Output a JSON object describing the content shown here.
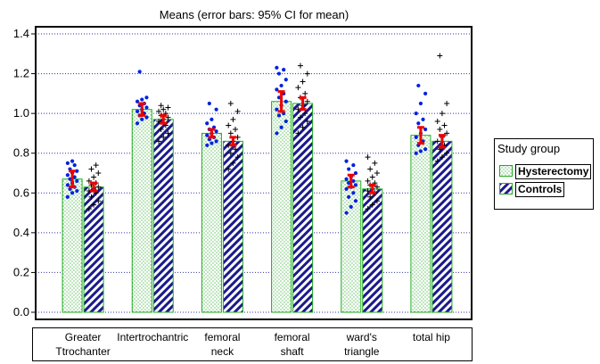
{
  "chart_data": {
    "type": "bar",
    "title": "Means  (error bars: 95% CI for mean)",
    "xlabel": "",
    "ylabel": "",
    "ylim": [
      0,
      1.4
    ],
    "yticks": [
      "0.0",
      "0.2",
      "0.4",
      "0.6",
      "0.8",
      "1.0",
      "1.2",
      "1.4"
    ],
    "grid": true,
    "categories": [
      "Greater\nTtrochanter",
      "Intertrochantric",
      "femoral\nneck",
      "femoral\nshaft",
      "ward's\ntriangle",
      "total hip"
    ],
    "series": [
      {
        "name": "Hysterectomy",
        "values": [
          0.67,
          1.02,
          0.9,
          1.06,
          0.66,
          0.89
        ],
        "ci_low": [
          0.63,
          0.99,
          0.88,
          1.01,
          0.63,
          0.85
        ],
        "ci_high": [
          0.71,
          1.05,
          0.92,
          1.11,
          0.69,
          0.93
        ],
        "points": [
          [
            0.58,
            0.6,
            0.61,
            0.62,
            0.63,
            0.64,
            0.65,
            0.66,
            0.67,
            0.68,
            0.69,
            0.7,
            0.71,
            0.72,
            0.74,
            0.75,
            0.76
          ],
          [
            0.95,
            0.97,
            0.98,
            0.99,
            1.0,
            1.01,
            1.02,
            1.03,
            1.04,
            1.05,
            1.06,
            1.07,
            1.08,
            1.21
          ],
          [
            0.84,
            0.85,
            0.86,
            0.87,
            0.88,
            0.89,
            0.9,
            0.91,
            0.92,
            0.93,
            0.95,
            0.97,
            1.02,
            1.05
          ],
          [
            0.9,
            0.93,
            0.96,
            0.99,
            1.0,
            1.02,
            1.04,
            1.06,
            1.08,
            1.1,
            1.12,
            1.14,
            1.17,
            1.2,
            1.22,
            1.23
          ],
          [
            0.5,
            0.53,
            0.56,
            0.58,
            0.6,
            0.62,
            0.63,
            0.64,
            0.65,
            0.66,
            0.67,
            0.68,
            0.7,
            0.72,
            0.74,
            0.76
          ],
          [
            0.8,
            0.81,
            0.82,
            0.84,
            0.86,
            0.88,
            0.9,
            0.92,
            0.95,
            0.97,
            1.0,
            1.05,
            1.1,
            1.14
          ]
        ]
      },
      {
        "name": "Controls",
        "values": [
          0.63,
          0.97,
          0.86,
          1.05,
          0.62,
          0.86
        ],
        "ci_low": [
          0.61,
          0.95,
          0.84,
          1.02,
          0.6,
          0.83
        ],
        "ci_high": [
          0.65,
          0.99,
          0.88,
          1.08,
          0.64,
          0.89
        ],
        "points": [
          [
            0.52,
            0.54,
            0.56,
            0.58,
            0.6,
            0.61,
            0.62,
            0.63,
            0.64,
            0.65,
            0.66,
            0.68,
            0.7,
            0.72,
            0.74
          ],
          [
            0.86,
            0.88,
            0.9,
            0.92,
            0.94,
            0.96,
            0.97,
            0.98,
            0.99,
            1.0,
            1.01,
            1.02,
            1.03,
            1.04
          ],
          [
            0.72,
            0.75,
            0.78,
            0.8,
            0.82,
            0.84,
            0.86,
            0.88,
            0.9,
            0.92,
            0.94,
            0.97,
            1.01,
            1.05
          ],
          [
            0.9,
            0.93,
            0.96,
            0.98,
            1.0,
            1.02,
            1.04,
            1.06,
            1.08,
            1.1,
            1.13,
            1.16,
            1.2,
            1.24
          ],
          [
            0.52,
            0.54,
            0.56,
            0.58,
            0.6,
            0.61,
            0.62,
            0.63,
            0.64,
            0.65,
            0.66,
            0.68,
            0.7,
            0.72,
            0.75,
            0.78
          ],
          [
            0.76,
            0.78,
            0.8,
            0.82,
            0.84,
            0.86,
            0.88,
            0.9,
            0.92,
            0.94,
            0.96,
            1.0,
            1.05,
            1.29
          ]
        ]
      }
    ],
    "legend": {
      "title": "Study group",
      "position": "right",
      "items": [
        "Hysterectomy",
        "Controls"
      ]
    },
    "colors": {
      "hysterectomy_border": "#22aa22",
      "hysterectomy_fill": "#ffffff",
      "hysterectomy_dots": "#22aa22",
      "controls_border": "#22aa22",
      "controls_stripe": "#1a1a8c",
      "point_hysterectomy": "#0022dd",
      "point_controls": "#000000",
      "error_bar": "#ee0000",
      "grid": "#3333aa"
    }
  }
}
